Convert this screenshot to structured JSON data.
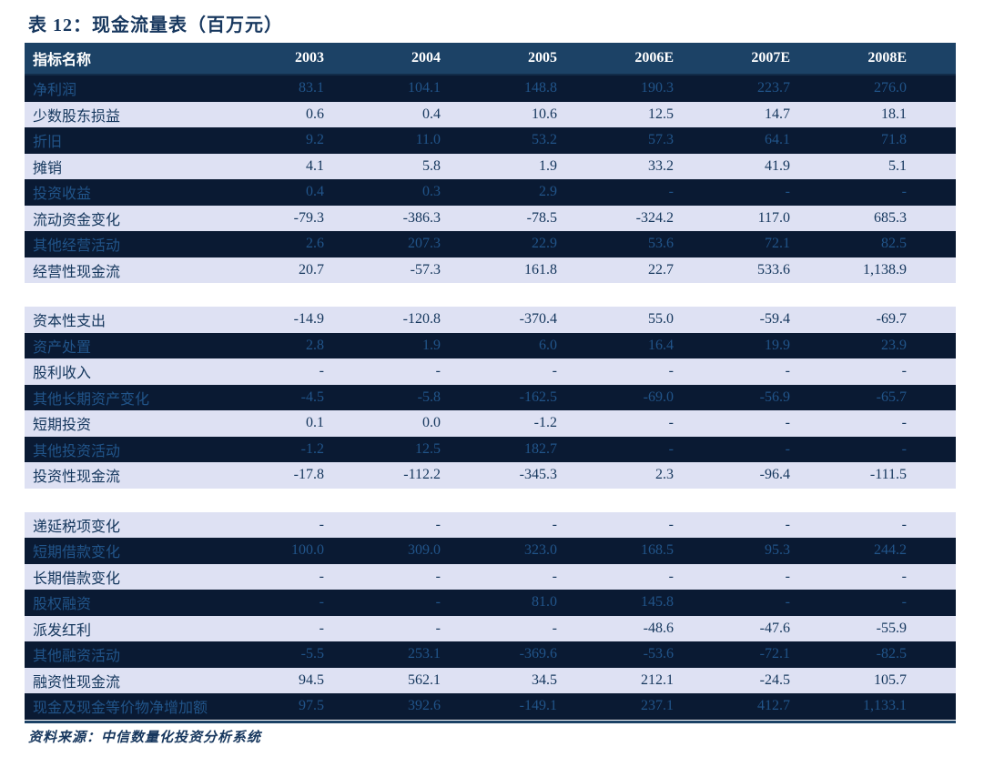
{
  "title": "表 12：现金流量表（百万元）",
  "colors": {
    "header_bg": "#1C4266",
    "header_text": "#FFFFFF",
    "dark_row_bg": "#0A1A33",
    "dark_row_text": "#215489",
    "light_row_bg": "#DEE1F3",
    "light_row_text": "#14365C",
    "title_text": "#17375E",
    "bottom_line": "#1C4266"
  },
  "table": {
    "columns": [
      "指标名称",
      "2003",
      "2004",
      "2005",
      "2006E",
      "2007E",
      "2008E"
    ],
    "sections": [
      {
        "start": "dark",
        "rows": [
          {
            "label": "净利润",
            "values": [
              "83.1",
              "104.1",
              "148.8",
              "190.3",
              "223.7",
              "276.0"
            ]
          },
          {
            "label": "少数股东损益",
            "values": [
              "0.6",
              "0.4",
              "10.6",
              "12.5",
              "14.7",
              "18.1"
            ]
          },
          {
            "label": "折旧",
            "values": [
              "9.2",
              "11.0",
              "53.2",
              "57.3",
              "64.1",
              "71.8"
            ]
          },
          {
            "label": "摊销",
            "values": [
              "4.1",
              "5.8",
              "1.9",
              "33.2",
              "41.9",
              "5.1"
            ]
          },
          {
            "label": "投资收益",
            "values": [
              "0.4",
              "0.3",
              "2.9",
              "-",
              "-",
              "-"
            ]
          },
          {
            "label": "流动资金变化",
            "values": [
              "-79.3",
              "-386.3",
              "-78.5",
              "-324.2",
              "117.0",
              "685.3"
            ]
          },
          {
            "label": "其他经营活动",
            "values": [
              "2.6",
              "207.3",
              "22.9",
              "53.6",
              "72.1",
              "82.5"
            ]
          },
          {
            "label": "经营性现金流",
            "values": [
              "20.7",
              "-57.3",
              "161.8",
              "22.7",
              "533.6",
              "1,138.9"
            ]
          }
        ]
      },
      {
        "start": "light",
        "rows": [
          {
            "label": "资本性支出",
            "values": [
              "-14.9",
              "-120.8",
              "-370.4",
              "55.0",
              "-59.4",
              "-69.7"
            ]
          },
          {
            "label": "资产处置",
            "values": [
              "2.8",
              "1.9",
              "6.0",
              "16.4",
              "19.9",
              "23.9"
            ]
          },
          {
            "label": "股利收入",
            "values": [
              "-",
              "-",
              "-",
              "-",
              "-",
              "-"
            ]
          },
          {
            "label": "其他长期资产变化",
            "values": [
              "-4.5",
              "-5.8",
              "-162.5",
              "-69.0",
              "-56.9",
              "-65.7"
            ]
          },
          {
            "label": "短期投资",
            "values": [
              "0.1",
              "0.0",
              "-1.2",
              "-",
              "-",
              "-"
            ]
          },
          {
            "label": "其他投资活动",
            "values": [
              "-1.2",
              "12.5",
              "182.7",
              "-",
              "-",
              "-"
            ]
          },
          {
            "label": "投资性现金流",
            "values": [
              "-17.8",
              "-112.2",
              "-345.3",
              "2.3",
              "-96.4",
              "-111.5"
            ]
          }
        ]
      },
      {
        "start": "light",
        "rows": [
          {
            "label": "递延税项变化",
            "values": [
              "-",
              "-",
              "-",
              "-",
              "-",
              "-"
            ]
          },
          {
            "label": "短期借款变化",
            "values": [
              "100.0",
              "309.0",
              "323.0",
              "168.5",
              "95.3",
              "244.2"
            ]
          },
          {
            "label": "长期借款变化",
            "values": [
              "-",
              "-",
              "-",
              "-",
              "-",
              "-"
            ]
          },
          {
            "label": "股权融资",
            "values": [
              "-",
              "-",
              "81.0",
              "145.8",
              "-",
              "-"
            ]
          },
          {
            "label": "派发红利",
            "values": [
              "-",
              "-",
              "-",
              "-48.6",
              "-47.6",
              "-55.9"
            ]
          },
          {
            "label": "其他融资活动",
            "values": [
              "-5.5",
              "253.1",
              "-369.6",
              "-53.6",
              "-72.1",
              "-82.5"
            ]
          },
          {
            "label": "融资性现金流",
            "values": [
              "94.5",
              "562.1",
              "34.5",
              "212.1",
              "-24.5",
              "105.7"
            ]
          },
          {
            "label": "现金及现金等价物净增加额",
            "values": [
              "97.5",
              "392.6",
              "-149.1",
              "237.1",
              "412.7",
              "1,133.1"
            ]
          }
        ]
      }
    ]
  },
  "footer": {
    "source": "资料来源：中信数量化投资分析系统"
  }
}
